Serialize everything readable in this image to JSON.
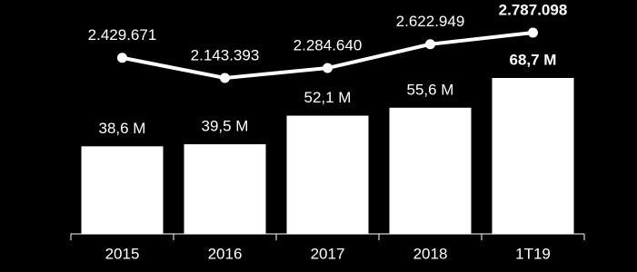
{
  "chart_data": {
    "type": "combo",
    "background": "#000000",
    "categories": [
      "2015",
      "2016",
      "2017",
      "2018",
      "1T19"
    ],
    "series": [
      {
        "type": "bar",
        "color": "#ffffff",
        "values": [
          38.6,
          39.5,
          52.1,
          55.6,
          68.7
        ],
        "value_labels": [
          "38,6 M",
          "39,5 M",
          "52,1 M",
          "55,6 M",
          "68,7 M"
        ]
      },
      {
        "type": "line",
        "color": "#ffffff",
        "values": [
          2429671,
          2143393,
          2284640,
          2622949,
          2787098
        ],
        "value_labels": [
          "2.429.671",
          "2.143.393",
          "2.284.640",
          "2.622.949",
          "2.787.098"
        ]
      }
    ]
  }
}
